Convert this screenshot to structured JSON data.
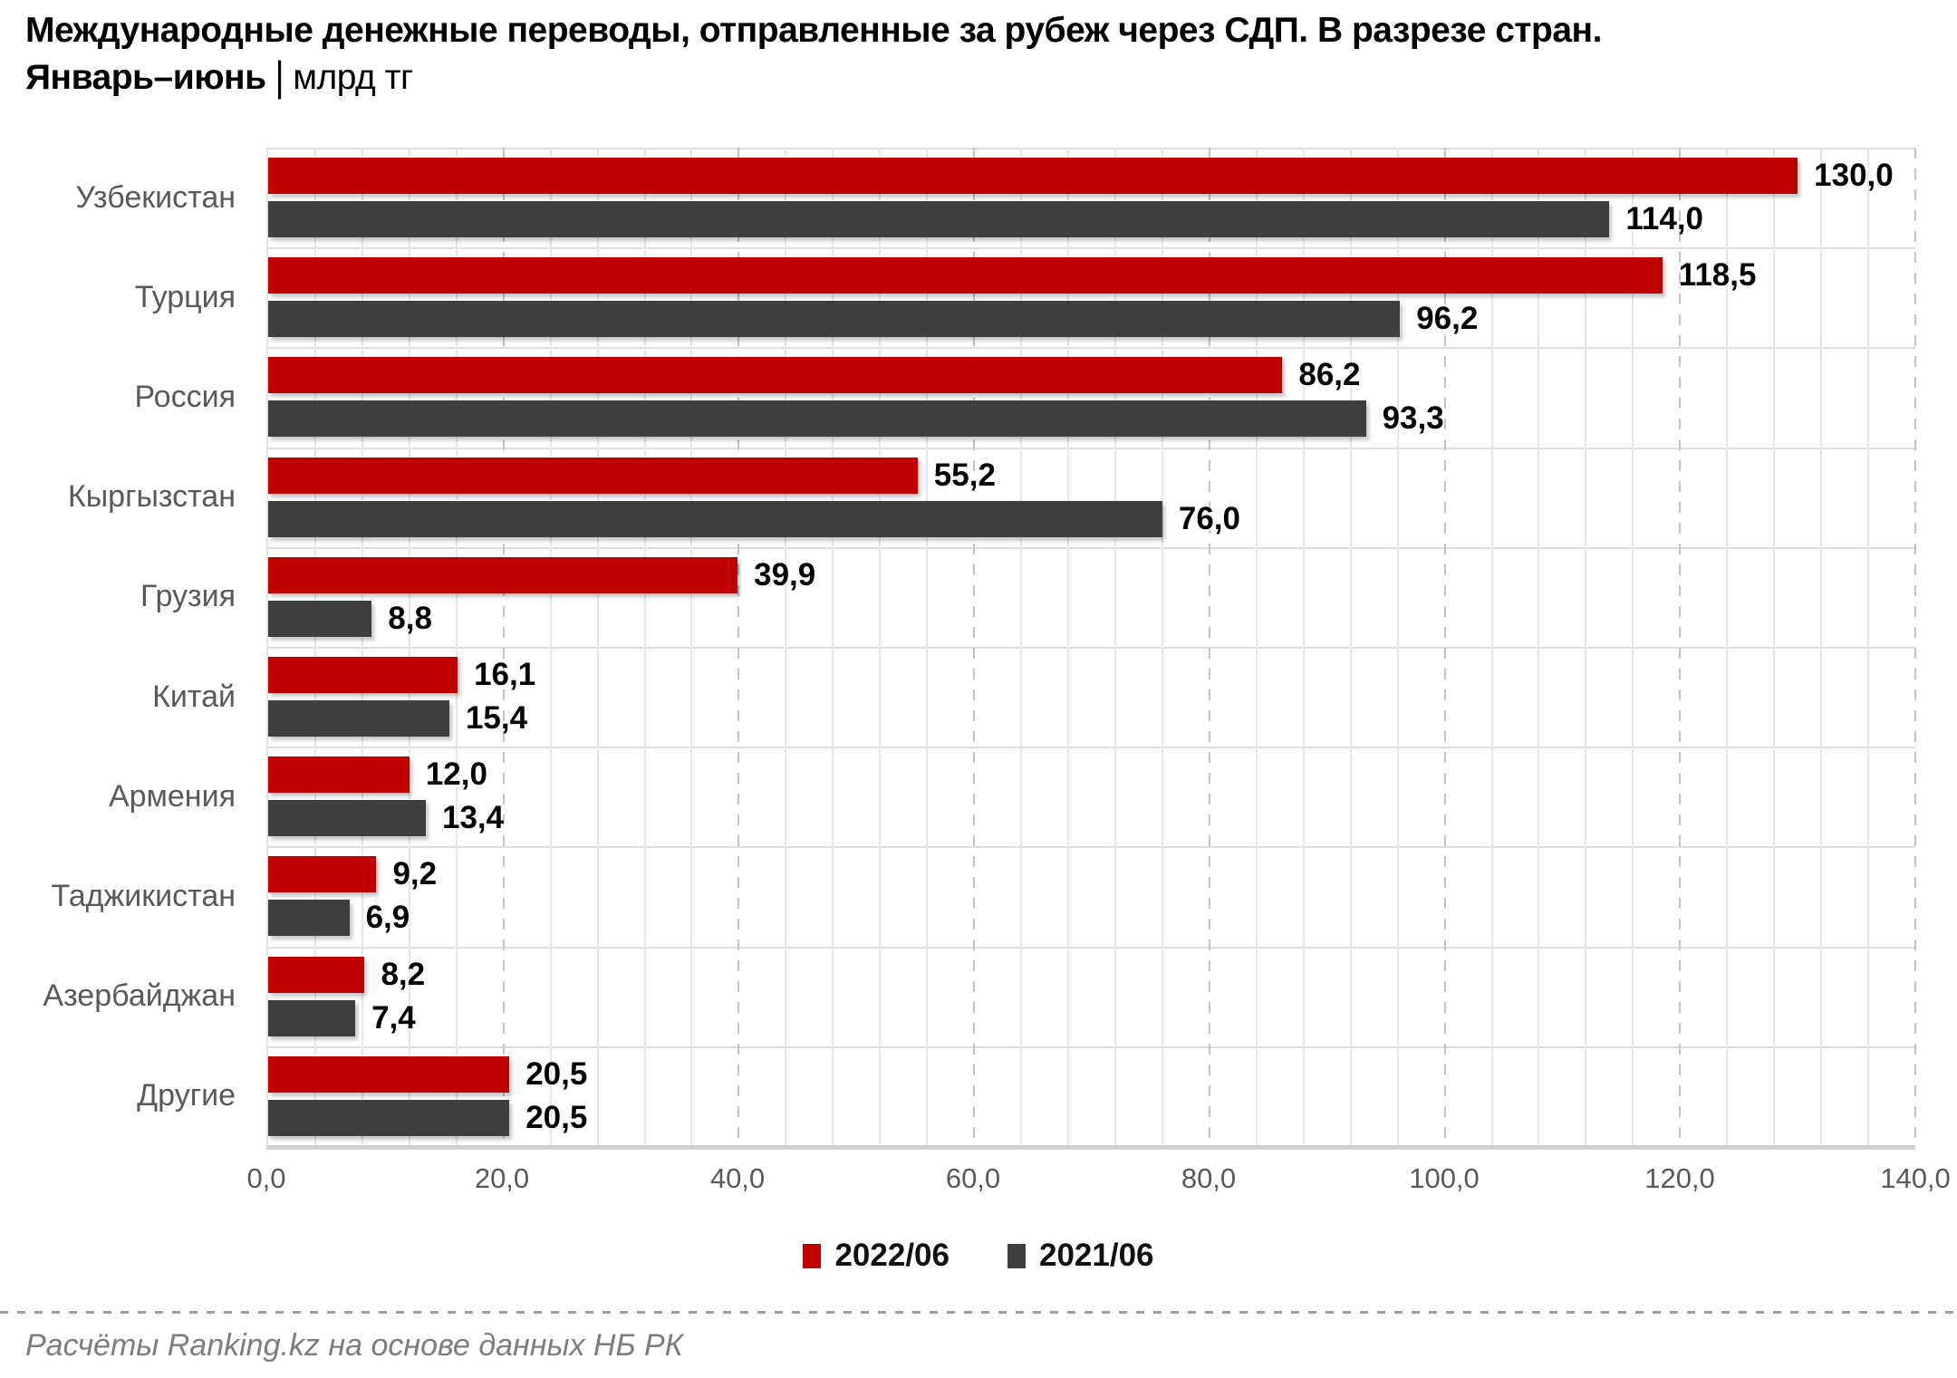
{
  "title": {
    "line1": "Международные денежные переводы, отправленные за рубеж через СДП. В разрезе стран.",
    "period": "Январь–июнь",
    "separator": "|",
    "unit": "млрд тг"
  },
  "chart_data": {
    "type": "bar",
    "orientation": "horizontal",
    "categories": [
      "Узбекистан",
      "Турция",
      "Россия",
      "Кыргызстан",
      "Грузия",
      "Китай",
      "Армения",
      "Таджикистан",
      "Азербайджан",
      "Другие"
    ],
    "series": [
      {
        "name": "2022/06",
        "color": "#c00000",
        "values": [
          130.0,
          118.5,
          86.2,
          55.2,
          39.9,
          16.1,
          12.0,
          9.2,
          8.2,
          20.5
        ],
        "labels": [
          "130,0",
          "118,5",
          "86,2",
          "55,2",
          "39,9",
          "16,1",
          "12,0",
          "9,2",
          "8,2",
          "20,5"
        ]
      },
      {
        "name": "2021/06",
        "color": "#3f3f3f",
        "values": [
          114.0,
          96.2,
          93.3,
          76.0,
          8.8,
          15.4,
          13.4,
          6.9,
          7.4,
          20.5
        ],
        "labels": [
          "114,0",
          "96,2",
          "93,3",
          "76,0",
          "8,8",
          "15,4",
          "13,4",
          "6,9",
          "7,4",
          "20,5"
        ]
      }
    ],
    "xlim": [
      0,
      140
    ],
    "x_tick_values": [
      0,
      20,
      40,
      60,
      80,
      100,
      120,
      140
    ],
    "x_tick_labels": [
      "0,0",
      "20,0",
      "40,0",
      "60,0",
      "80,0",
      "100,0",
      "120,0",
      "140,0"
    ],
    "minor_grid_step": 4,
    "major_grid_step": 20,
    "grid": "vertical, minor solid + major dashed",
    "legend_position": "bottom"
  },
  "legend": {
    "items": [
      {
        "label": "2022/06",
        "color": "#c00000"
      },
      {
        "label": "2021/06",
        "color": "#3f3f3f"
      }
    ]
  },
  "footer": {
    "source": "Расчёты Ranking.kz на основе данных НБ РК"
  },
  "colors": {
    "series_2022": "#c00000",
    "series_2021": "#3f3f3f",
    "axis_text": "#595959",
    "grid_minor": "#e6e6e6",
    "grid_major": "#c2c2c2",
    "footer_text": "#7d7d7d"
  }
}
